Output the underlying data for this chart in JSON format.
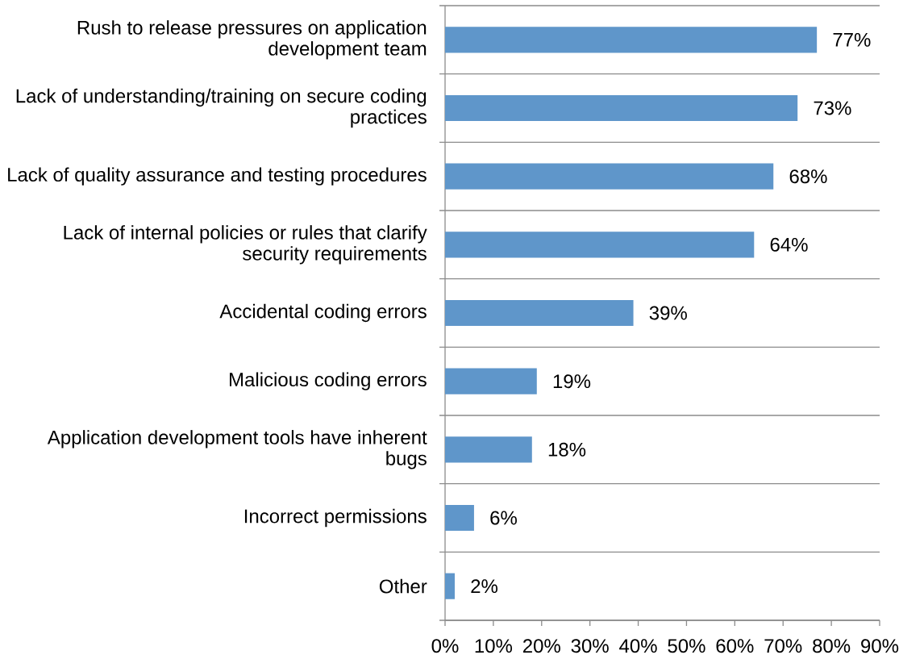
{
  "chart_data": {
    "type": "bar",
    "orientation": "horizontal",
    "categories": [
      "Rush to release pressures on application development team",
      "Lack of understanding/training on secure coding practices",
      "Lack of quality assurance and testing procedures",
      "Lack of internal policies or rules that clarify security requirements",
      "Accidental coding errors",
      "Malicious coding errors",
      "Application development tools have inherent bugs",
      "Incorrect permissions",
      "Other"
    ],
    "values": [
      77,
      73,
      68,
      64,
      39,
      19,
      18,
      6,
      2
    ],
    "color": "#5f96ca",
    "value_labels": [
      "77%",
      "73%",
      "68%",
      "64%",
      "39%",
      "19%",
      "18%",
      "6%",
      "2%"
    ],
    "xlim": [
      0,
      90
    ],
    "xticks": [
      {
        "value": 0,
        "label": "0%"
      },
      {
        "value": 10,
        "label": "10%"
      },
      {
        "value": 20,
        "label": "20%"
      },
      {
        "value": 30,
        "label": "30%"
      },
      {
        "value": 40,
        "label": "40%"
      },
      {
        "value": 50,
        "label": "50%"
      },
      {
        "value": 60,
        "label": "60%"
      },
      {
        "value": 70,
        "label": "70%"
      },
      {
        "value": 80,
        "label": "80%"
      },
      {
        "value": 90,
        "label": "90%"
      }
    ],
    "grid": "y"
  }
}
